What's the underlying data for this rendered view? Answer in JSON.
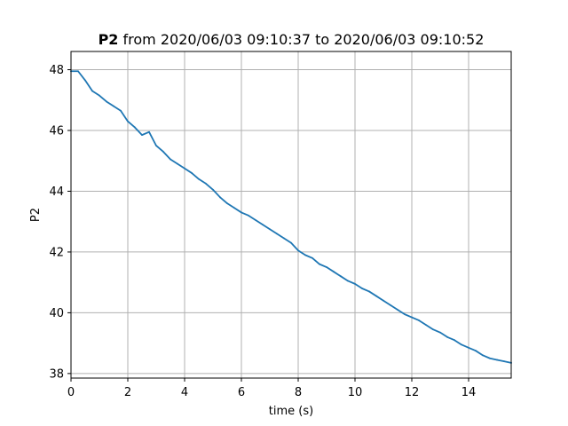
{
  "chart_data": {
    "type": "line",
    "title": {
      "bold": "P2",
      "rest": " from 2020/06/03 09:10:37 to 2020/06/03 09:10:52"
    },
    "xlabel": "time (s)",
    "ylabel": "P2",
    "xlim": [
      0,
      15.5
    ],
    "ylim": [
      37.85,
      48.6
    ],
    "xticks": [
      0,
      2,
      4,
      6,
      8,
      10,
      12,
      14
    ],
    "xtick_labels": [
      "0",
      "2",
      "4",
      "6",
      "8",
      "10",
      "12",
      "14"
    ],
    "yticks": [
      38,
      40,
      42,
      44,
      46,
      48
    ],
    "ytick_labels": [
      "38",
      "40",
      "42",
      "44",
      "46",
      "48"
    ],
    "grid": true,
    "series": [
      {
        "color": "#1f77b4",
        "x": [
          0,
          0.25,
          0.5,
          0.75,
          1.0,
          1.25,
          1.5,
          1.75,
          2.0,
          2.25,
          2.5,
          2.75,
          3.0,
          3.25,
          3.5,
          3.75,
          4.0,
          4.25,
          4.5,
          4.75,
          5.0,
          5.25,
          5.5,
          5.75,
          6.0,
          6.25,
          6.5,
          6.75,
          7.0,
          7.25,
          7.5,
          7.75,
          8.0,
          8.25,
          8.5,
          8.75,
          9.0,
          9.25,
          9.5,
          9.75,
          10.0,
          10.25,
          10.5,
          10.75,
          11.0,
          11.25,
          11.5,
          11.75,
          12.0,
          12.25,
          12.5,
          12.75,
          13.0,
          13.25,
          13.5,
          13.75,
          14.0,
          14.25,
          14.5,
          14.75,
          15.0,
          15.25,
          15.5
        ],
        "y": [
          47.95,
          47.95,
          47.65,
          47.3,
          47.15,
          46.95,
          46.8,
          46.65,
          46.3,
          46.1,
          45.85,
          45.95,
          45.5,
          45.3,
          45.05,
          44.9,
          44.75,
          44.6,
          44.4,
          44.25,
          44.05,
          43.8,
          43.6,
          43.45,
          43.3,
          43.2,
          43.05,
          42.9,
          42.75,
          42.6,
          42.45,
          42.3,
          42.05,
          41.9,
          41.8,
          41.6,
          41.5,
          41.35,
          41.2,
          41.05,
          40.95,
          40.8,
          40.7,
          40.55,
          40.4,
          40.25,
          40.1,
          39.95,
          39.85,
          39.75,
          39.6,
          39.45,
          39.35,
          39.2,
          39.1,
          38.95,
          38.85,
          38.75,
          38.6,
          38.5,
          38.45,
          38.4,
          38.35
        ]
      }
    ]
  }
}
